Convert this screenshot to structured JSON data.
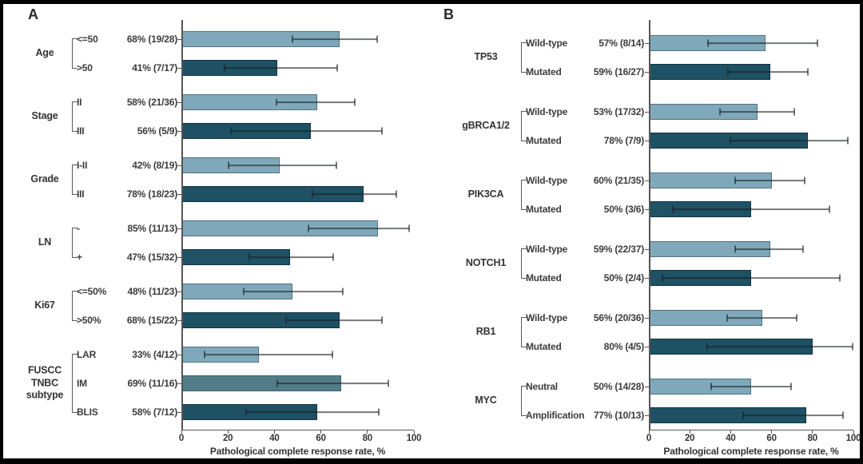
{
  "colors": {
    "light": "#7fa9ba",
    "medium": "#527d88",
    "dark": "#1d5163",
    "light_border": "#54707e",
    "medium_border": "#39606c",
    "dark_border": "#12333f"
  },
  "chart_data": {
    "type": "bar",
    "orientation": "horizontal",
    "xlim": [
      0,
      100
    ],
    "xticks": [
      0,
      20,
      40,
      60,
      80,
      100
    ],
    "xlabel": "Pathological complete response rate, %",
    "panels": [
      {
        "label": "A",
        "xlabel": "Pathological complete response rate, %",
        "tick_labels": [
          "0",
          "20",
          "40",
          "60",
          "80",
          "100"
        ],
        "groups": [
          {
            "name": "Age",
            "rows": [
              {
                "category": "<=50",
                "stat": "68% (19/28)",
                "value": 67.9,
                "ci_low": 47.6,
                "ci_high": 84.1,
                "shade": "light"
              },
              {
                "category": ">50",
                "stat": "41% (7/17)",
                "value": 41.2,
                "ci_low": 18.4,
                "ci_high": 67.1,
                "shade": "dark"
              }
            ]
          },
          {
            "name": "Stage",
            "rows": [
              {
                "category": "II",
                "stat": "58% (21/36)",
                "value": 58.3,
                "ci_low": 40.8,
                "ci_high": 74.5,
                "shade": "light"
              },
              {
                "category": "III",
                "stat": "56% (5/9)",
                "value": 55.6,
                "ci_low": 21.2,
                "ci_high": 86.3,
                "shade": "dark"
              }
            ]
          },
          {
            "name": "Grade",
            "rows": [
              {
                "category": "I-II",
                "stat": "42% (8/19)",
                "value": 42.1,
                "ci_low": 20.3,
                "ci_high": 66.5,
                "shade": "light"
              },
              {
                "category": "III",
                "stat": "78% (18/23)",
                "value": 78.3,
                "ci_low": 56.3,
                "ci_high": 92.5,
                "shade": "dark"
              }
            ]
          },
          {
            "name": "LN",
            "rows": [
              {
                "category": "-",
                "stat": "85% (11/13)",
                "value": 84.6,
                "ci_low": 54.6,
                "ci_high": 98.1,
                "shade": "light"
              },
              {
                "category": "+",
                "stat": "47% (15/32)",
                "value": 46.9,
                "ci_low": 29.1,
                "ci_high": 65.3,
                "shade": "dark"
              }
            ]
          },
          {
            "name": "Ki67",
            "rows": [
              {
                "category": "<=50%",
                "stat": "48% (11/23)",
                "value": 47.8,
                "ci_low": 26.8,
                "ci_high": 69.4,
                "shade": "light"
              },
              {
                "category": ">50%",
                "stat": "68% (15/22)",
                "value": 68.2,
                "ci_low": 45.1,
                "ci_high": 86.1,
                "shade": "dark"
              }
            ]
          },
          {
            "name": "FUSCC TNBC subtype",
            "rows": [
              {
                "category": "LAR",
                "stat": "33% (4/12)",
                "value": 33.3,
                "ci_low": 9.9,
                "ci_high": 65.1,
                "shade": "light"
              },
              {
                "category": "IM",
                "stat": "69% (11/16)",
                "value": 68.8,
                "ci_low": 41.3,
                "ci_high": 89.0,
                "shade": "medium"
              },
              {
                "category": "BLIS",
                "stat": "58% (7/12)",
                "value": 58.3,
                "ci_low": 27.7,
                "ci_high": 84.8,
                "shade": "dark"
              }
            ]
          }
        ]
      },
      {
        "label": "B",
        "xlabel": "Pathological complete response rate, %",
        "tick_labels": [
          "0",
          "20",
          "40",
          "60",
          "80",
          "100"
        ],
        "groups": [
          {
            "name": "TP53",
            "rows": [
              {
                "category": "Wild-type",
                "stat": "57% (8/14)",
                "value": 57.1,
                "ci_low": 28.9,
                "ci_high": 82.3,
                "shade": "light"
              },
              {
                "category": "Mutated",
                "stat": "59% (16/27)",
                "value": 59.3,
                "ci_low": 38.8,
                "ci_high": 77.6,
                "shade": "dark"
              }
            ]
          },
          {
            "name": "gBRCA1/2",
            "rows": [
              {
                "category": "Wild-type",
                "stat": "53% (17/32)",
                "value": 53.1,
                "ci_low": 34.7,
                "ci_high": 70.9,
                "shade": "light"
              },
              {
                "category": "Mutated",
                "stat": "78% (7/9)",
                "value": 77.8,
                "ci_low": 40.0,
                "ci_high": 97.2,
                "shade": "dark"
              }
            ]
          },
          {
            "name": "PIK3CA",
            "rows": [
              {
                "category": "Wild-type",
                "stat": "60% (21/35)",
                "value": 60.0,
                "ci_low": 42.1,
                "ci_high": 76.1,
                "shade": "light"
              },
              {
                "category": "Mutated",
                "stat": "50% (3/6)",
                "value": 50.0,
                "ci_low": 11.8,
                "ci_high": 88.2,
                "shade": "dark"
              }
            ]
          },
          {
            "name": "NOTCH1",
            "rows": [
              {
                "category": "Wild-type",
                "stat": "59% (22/37)",
                "value": 59.5,
                "ci_low": 42.1,
                "ci_high": 75.2,
                "shade": "light"
              },
              {
                "category": "Mutated",
                "stat": "50% (2/4)",
                "value": 50.0,
                "ci_low": 6.8,
                "ci_high": 93.2,
                "shade": "dark"
              }
            ]
          },
          {
            "name": "RB1",
            "rows": [
              {
                "category": "Wild-type",
                "stat": "56% (20/36)",
                "value": 55.6,
                "ci_low": 38.1,
                "ci_high": 72.1,
                "shade": "light"
              },
              {
                "category": "Mutated",
                "stat": "80% (4/5)",
                "value": 80.0,
                "ci_low": 28.4,
                "ci_high": 99.5,
                "shade": "dark"
              }
            ]
          },
          {
            "name": "MYC",
            "rows": [
              {
                "category": "Neutral",
                "stat": "50% (14/28)",
                "value": 50.0,
                "ci_low": 30.6,
                "ci_high": 69.4,
                "shade": "light"
              },
              {
                "category": "Amplification",
                "stat": "77% (10/13)",
                "value": 76.9,
                "ci_low": 46.2,
                "ci_high": 95.0,
                "shade": "dark"
              }
            ]
          }
        ]
      }
    ]
  }
}
